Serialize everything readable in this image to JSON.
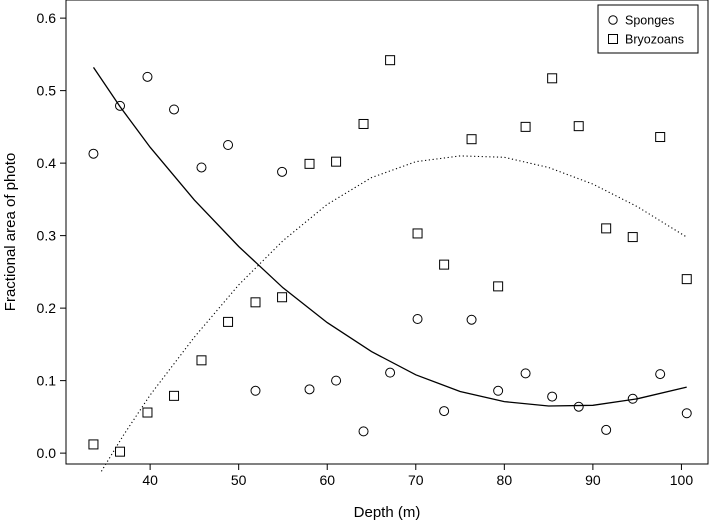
{
  "chart_data": {
    "type": "scatter",
    "title": "",
    "xlabel": "Depth (m)",
    "ylabel": "Fractional area of photo",
    "xlim": [
      30.5,
      103
    ],
    "ylim": [
      -0.015,
      0.625
    ],
    "x_ticks": [
      40,
      50,
      60,
      70,
      80,
      90,
      100
    ],
    "x_tick_labels": [
      "40",
      "50",
      "60",
      "70",
      "80",
      "90",
      "100"
    ],
    "y_ticks": [
      0.0,
      0.1,
      0.2,
      0.3,
      0.4,
      0.5,
      0.6
    ],
    "y_tick_labels": [
      "0.0",
      "0.1",
      "0.2",
      "0.3",
      "0.4",
      "0.5",
      "0.6"
    ],
    "grid": false,
    "legend_position": "top-right",
    "series": [
      {
        "name": "Sponges",
        "marker": "circle",
        "points": [
          [
            33.6,
            0.413
          ],
          [
            36.6,
            0.479
          ],
          [
            39.7,
            0.519
          ],
          [
            42.7,
            0.474
          ],
          [
            45.8,
            0.394
          ],
          [
            48.8,
            0.425
          ],
          [
            51.9,
            0.086
          ],
          [
            54.9,
            0.388
          ],
          [
            58.0,
            0.088
          ],
          [
            61.0,
            0.1
          ],
          [
            64.1,
            0.03
          ],
          [
            67.1,
            0.111
          ],
          [
            70.2,
            0.185
          ],
          [
            73.2,
            0.058
          ],
          [
            76.3,
            0.184
          ],
          [
            79.3,
            0.086
          ],
          [
            82.4,
            0.11
          ],
          [
            85.4,
            0.078
          ],
          [
            88.4,
            0.064
          ],
          [
            91.5,
            0.032
          ],
          [
            94.5,
            0.075
          ],
          [
            97.6,
            0.109
          ],
          [
            100.6,
            0.055
          ]
        ]
      },
      {
        "name": "Bryozoans",
        "marker": "square",
        "points": [
          [
            33.6,
            0.012
          ],
          [
            36.6,
            0.002
          ],
          [
            39.7,
            0.056
          ],
          [
            42.7,
            0.079
          ],
          [
            45.8,
            0.128
          ],
          [
            48.8,
            0.181
          ],
          [
            51.9,
            0.208
          ],
          [
            54.9,
            0.215
          ],
          [
            58.0,
            0.399
          ],
          [
            61.0,
            0.402
          ],
          [
            64.1,
            0.454
          ],
          [
            67.1,
            0.542
          ],
          [
            70.2,
            0.303
          ],
          [
            73.2,
            0.26
          ],
          [
            76.3,
            0.433
          ],
          [
            79.3,
            0.23
          ],
          [
            82.4,
            0.45
          ],
          [
            85.4,
            0.517
          ],
          [
            88.4,
            0.451
          ],
          [
            91.5,
            0.31
          ],
          [
            94.5,
            0.298
          ],
          [
            97.6,
            0.436
          ],
          [
            100.6,
            0.24
          ]
        ]
      }
    ],
    "fits": [
      {
        "series": "Sponges",
        "line_style": "solid",
        "curve": [
          [
            33.6,
            0.532
          ],
          [
            36.6,
            0.478
          ],
          [
            40,
            0.422
          ],
          [
            45,
            0.349
          ],
          [
            50,
            0.285
          ],
          [
            55,
            0.228
          ],
          [
            60,
            0.18
          ],
          [
            65,
            0.14
          ],
          [
            70,
            0.108
          ],
          [
            75,
            0.085
          ],
          [
            80,
            0.071
          ],
          [
            85,
            0.065
          ],
          [
            90,
            0.066
          ],
          [
            95,
            0.075
          ],
          [
            100.6,
            0.091
          ]
        ]
      },
      {
        "series": "Bryozoans",
        "line_style": "dotted",
        "curve": [
          [
            34.5,
            -0.025
          ],
          [
            37,
            0.025
          ],
          [
            40,
            0.08
          ],
          [
            45,
            0.16
          ],
          [
            50,
            0.232
          ],
          [
            55,
            0.293
          ],
          [
            60,
            0.343
          ],
          [
            65,
            0.38
          ],
          [
            70,
            0.402
          ],
          [
            75,
            0.41
          ],
          [
            80,
            0.408
          ],
          [
            85,
            0.394
          ],
          [
            90,
            0.371
          ],
          [
            95,
            0.34
          ],
          [
            100.6,
            0.298
          ]
        ]
      }
    ]
  }
}
